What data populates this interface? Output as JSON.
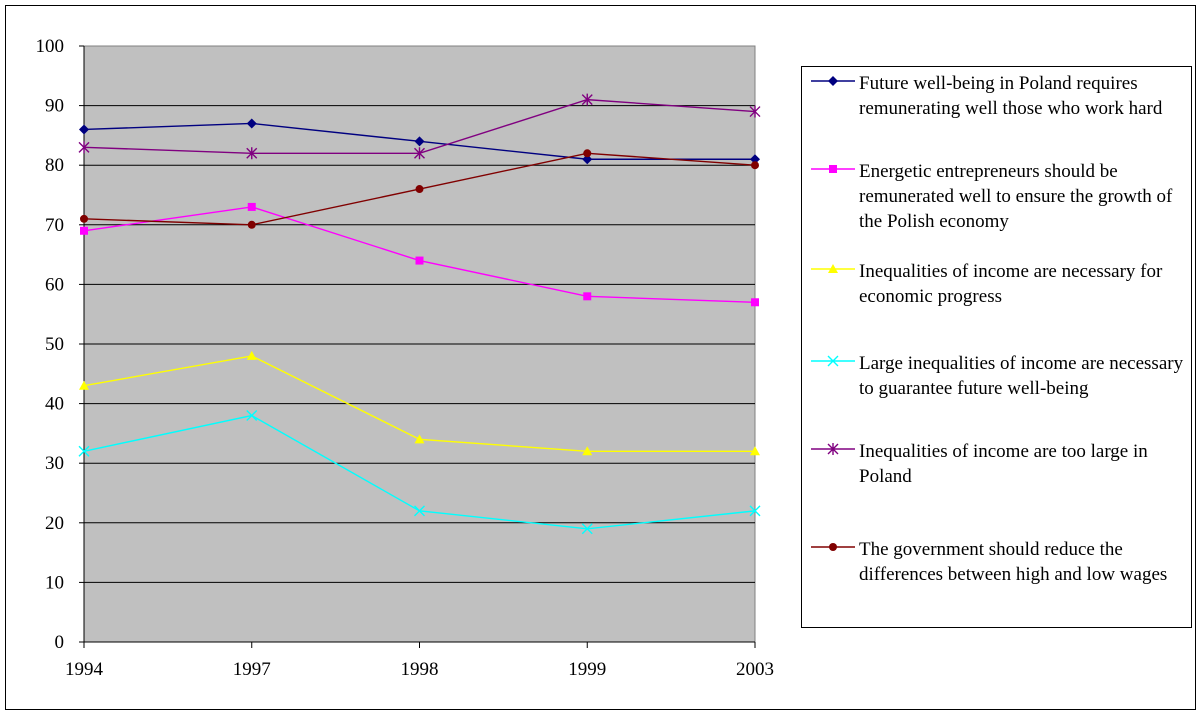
{
  "chart_data": {
    "type": "line",
    "categories": [
      "1994",
      "1997",
      "1998",
      "1999",
      "2003"
    ],
    "ylim": [
      0,
      100
    ],
    "yticks": [
      0,
      10,
      20,
      30,
      40,
      50,
      60,
      70,
      80,
      90,
      100
    ],
    "grid": true,
    "plot_background": "#C0C0C0",
    "legend_position": "right",
    "series": [
      {
        "name": "Future well-being in Poland requires remunerating well those who work hard",
        "values": [
          86,
          87,
          84,
          81,
          81
        ],
        "color": "#000080",
        "marker": "diamond"
      },
      {
        "name": "Energetic entrepreneurs should  be remunerated well to ensure the growth of the Polish economy",
        "values": [
          69,
          73,
          64,
          58,
          57
        ],
        "color": "#FF00FF",
        "marker": "square"
      },
      {
        "name": "Inequalities of income are necessary for economic progress",
        "values": [
          43,
          48,
          34,
          32,
          32
        ],
        "color": "#FFFF00",
        "marker": "triangle"
      },
      {
        "name": "Large inequalities of income are necessary to guarantee future well-being",
        "values": [
          32,
          38,
          22,
          19,
          22
        ],
        "color": "#00FFFF",
        "marker": "x"
      },
      {
        "name": "Inequalities of income are too large in Poland",
        "values": [
          83,
          82,
          82,
          91,
          89
        ],
        "color": "#800080",
        "marker": "star"
      },
      {
        "name": "The government should reduce the differences between high and low wages",
        "values": [
          71,
          70,
          76,
          82,
          80
        ],
        "color": "#800000",
        "marker": "circle"
      }
    ]
  }
}
